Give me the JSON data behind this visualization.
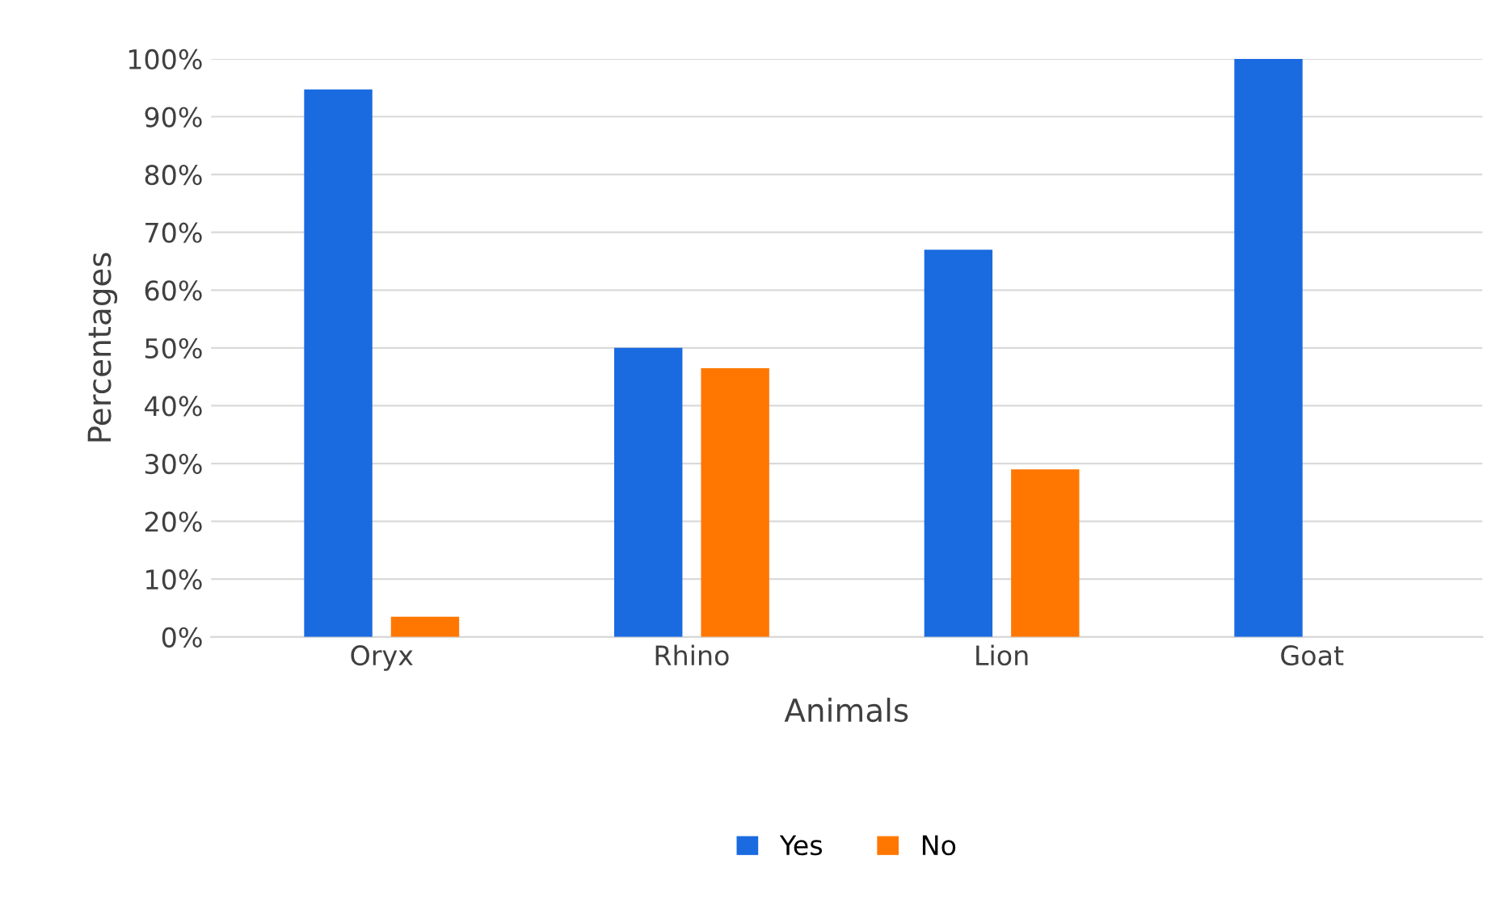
{
  "chart_data": {
    "type": "bar",
    "xlabel": "Animals",
    "ylabel": "Percentages",
    "categories": [
      "Oryx",
      "Rhino",
      "Lion",
      "Goat"
    ],
    "series": [
      {
        "name": "Yes",
        "color": "#1a6ae0",
        "values": [
          94.7,
          50,
          67,
          100
        ]
      },
      {
        "name": "No",
        "color": "#ff7700",
        "values": [
          3.5,
          46.5,
          29,
          0
        ]
      }
    ],
    "ylim": [
      0,
      100
    ],
    "yticks": [
      {
        "value": 0,
        "label": "0%"
      },
      {
        "value": 10,
        "label": "10%"
      },
      {
        "value": 20,
        "label": "20%"
      },
      {
        "value": 30,
        "label": "30%"
      },
      {
        "value": 40,
        "label": "40%"
      },
      {
        "value": 50,
        "label": "50%"
      },
      {
        "value": 60,
        "label": "60%"
      },
      {
        "value": 70,
        "label": "70%"
      },
      {
        "value": 80,
        "label": "80%"
      },
      {
        "value": 90,
        "label": "90%"
      },
      {
        "value": 100,
        "label": "100%"
      }
    ],
    "grid": "y",
    "legend": "bottom"
  }
}
